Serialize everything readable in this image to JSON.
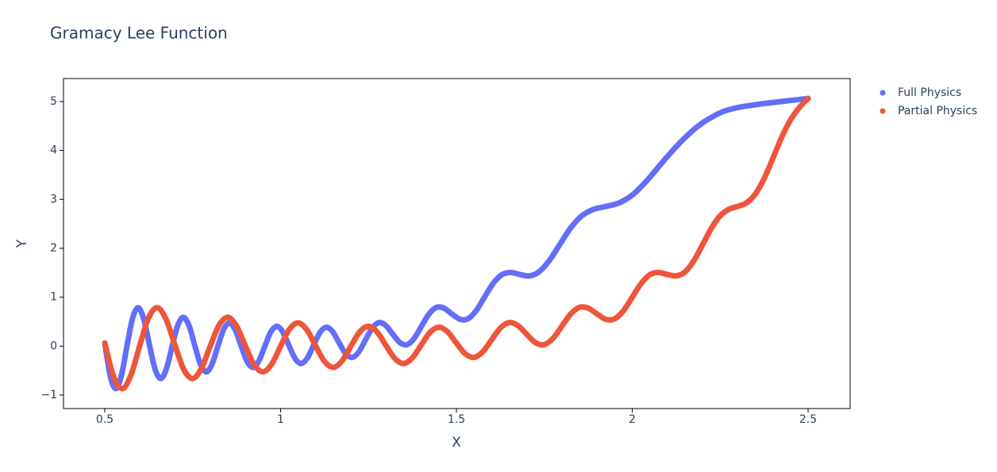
{
  "chart_data": {
    "type": "scatter",
    "title": "Gramacy Lee Function",
    "x_label": "X",
    "y_label": "Y",
    "xlim": [
      0.3826,
      2.6196
    ],
    "ylim": [
      -1.276,
      5.47
    ],
    "xticks": [
      0.5,
      1,
      1.5,
      2,
      2.5
    ],
    "yticks": [
      {
        "value": -1,
        "label": "−1"
      },
      0,
      1,
      2,
      3,
      4,
      5
    ],
    "grid": false,
    "legend": "top-right",
    "series": [
      {
        "name": "Full Physics",
        "color": "#636efa",
        "x": [
          0.5,
          0.5159,
          0.5318,
          0.5478,
          0.5637,
          0.5796,
          0.5956,
          0.6115,
          0.6275,
          0.6435,
          0.6596,
          0.6756,
          0.6917,
          0.7078,
          0.724,
          0.7402,
          0.7564,
          0.7726,
          0.789,
          0.8053,
          0.8217,
          0.8382,
          0.8547,
          0.8713,
          0.8879,
          0.9047,
          0.9215,
          0.9383,
          0.9553,
          0.9723,
          0.9894,
          1.0067,
          1.024,
          1.0414,
          1.0589,
          1.0766,
          1.0943,
          1.1122,
          1.1302,
          1.1484,
          1.1667,
          1.1852,
          1.2038,
          1.2226,
          1.2415,
          1.2607,
          1.2799,
          1.2994,
          1.3193,
          1.3394,
          1.3596,
          1.3802,
          1.4009,
          1.422,
          1.4434,
          1.4651,
          1.4873,
          1.5099,
          1.5327,
          1.5561,
          1.5798,
          1.604,
          1.6291,
          1.6544,
          1.6807,
          1.7073,
          1.7344,
          1.7637,
          1.7936,
          1.8243,
          1.8565,
          1.8908,
          1.9257,
          1.9636,
          2.0037,
          2.0468,
          2.0957,
          2.1511,
          2.2129,
          2.299,
          2.5
        ],
        "values": [
          0.0625,
          -0.6225,
          -0.8681,
          -0.5823,
          0.0256,
          0.5855,
          0.7842,
          0.535,
          0.0081,
          -0.482,
          -0.6628,
          -0.4536,
          0.0016,
          0.4294,
          0.5887,
          0.4043,
          0.0001,
          -0.3822,
          -0.5263,
          -0.3626,
          0,
          0.3449,
          0.4762,
          0.3289,
          0.0001,
          -0.3141,
          -0.4343,
          -0.3,
          0.0016,
          0.2912,
          0.4039,
          0.283,
          0.0081,
          -0.2556,
          -0.3554,
          -0.2373,
          0.0256,
          0.2807,
          0.3858,
          0.2906,
          0.0625,
          -0.1558,
          -0.2311,
          -0.1152,
          0.1296,
          0.3702,
          0.4815,
          0.4187,
          0.2401,
          0.0713,
          0.0307,
          0.1615,
          0.4096,
          0.6569,
          0.7923,
          0.7748,
          0.6561,
          0.5484,
          0.5581,
          0.7247,
          1,
          1.2784,
          1.4594,
          1.5059,
          1.4641,
          1.4354,
          1.5164,
          1.7435,
          2.0736,
          2.4108,
          2.6636,
          2.798,
          2.8561,
          2.9302,
          3.1087,
          3.4256,
          3.8416,
          4.2693,
          4.6246,
          4.8761,
          5.0625
        ]
      },
      {
        "name": "Partial Physics",
        "color": "#EF553B",
        "x": [
          0.5,
          0.525,
          0.55,
          0.575,
          0.6,
          0.625,
          0.65,
          0.675,
          0.7,
          0.725,
          0.75,
          0.775,
          0.8,
          0.825,
          0.85,
          0.875,
          0.9,
          0.925,
          0.95,
          0.975,
          1,
          1.025,
          1.05,
          1.075,
          1.1,
          1.125,
          1.15,
          1.175,
          1.2,
          1.225,
          1.25,
          1.275,
          1.3,
          1.325,
          1.35,
          1.375,
          1.4,
          1.425,
          1.45,
          1.475,
          1.5,
          1.525,
          1.55,
          1.575,
          1.6,
          1.625,
          1.65,
          1.675,
          1.7,
          1.725,
          1.75,
          1.775,
          1.8,
          1.825,
          1.85,
          1.875,
          1.9,
          1.925,
          1.95,
          1.975,
          2,
          2.025,
          2.05,
          2.075,
          2.1,
          2.125,
          2.15,
          2.175,
          2.2,
          2.225,
          2.25,
          2.275,
          2.3,
          2.325,
          2.35,
          2.375,
          2.4,
          2.425,
          2.45,
          2.475,
          2.5
        ],
        "values": [
          0.0625,
          -0.6225,
          -0.8681,
          -0.5823,
          0.0256,
          0.5855,
          0.7842,
          0.535,
          0.0081,
          -0.482,
          -0.6628,
          -0.4536,
          0.0016,
          0.4294,
          0.5887,
          0.4043,
          0.0001,
          -0.3822,
          -0.5263,
          -0.3626,
          0,
          0.3449,
          0.4762,
          0.3289,
          0.0001,
          -0.3141,
          -0.4343,
          -0.3,
          0.0016,
          0.2912,
          0.4039,
          0.283,
          0.0081,
          -0.2556,
          -0.3554,
          -0.2373,
          0.0256,
          0.2807,
          0.3858,
          0.2906,
          0.0625,
          -0.1558,
          -0.2311,
          -0.1152,
          0.1296,
          0.3702,
          0.4815,
          0.4187,
          0.2401,
          0.0713,
          0.0307,
          0.1615,
          0.4096,
          0.6569,
          0.7923,
          0.7748,
          0.6561,
          0.5484,
          0.5581,
          0.7247,
          1,
          1.2784,
          1.4594,
          1.5059,
          1.4641,
          1.4354,
          1.5164,
          1.7435,
          2.0736,
          2.4108,
          2.6636,
          2.798,
          2.8561,
          2.9302,
          3.1087,
          3.4256,
          3.8416,
          4.2693,
          4.6246,
          4.8761,
          5.0625
        ]
      }
    ]
  }
}
